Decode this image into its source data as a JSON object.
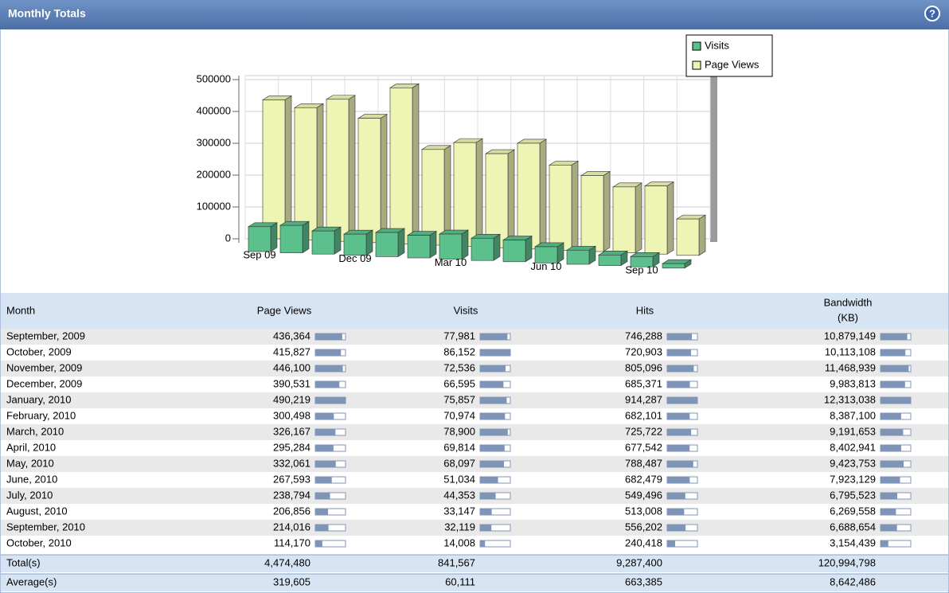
{
  "header": {
    "title": "Monthly Totals"
  },
  "chart_data": {
    "type": "bar3d",
    "categories": [
      "Sep 09",
      null,
      null,
      "Dec 09",
      null,
      null,
      "Mar 10",
      null,
      null,
      "Jun 10",
      null,
      null,
      "Sep 10",
      null
    ],
    "series": [
      {
        "name": "Visits",
        "color": "#5cc08c",
        "values": [
          77981,
          86152,
          72536,
          66595,
          75857,
          70974,
          78900,
          69814,
          68097,
          51034,
          44353,
          33147,
          32119,
          14008
        ]
      },
      {
        "name": "Page Views",
        "color": "#eef4b4",
        "values": [
          436364,
          415827,
          446100,
          390531,
          490219,
          300498,
          326167,
          295284,
          332061,
          267593,
          238794,
          206856,
          214016,
          114170
        ]
      }
    ],
    "ylim": [
      0,
      500000
    ],
    "yticks": [
      0,
      100000,
      200000,
      300000,
      400000,
      500000
    ],
    "grid": true,
    "legend": "top-right"
  },
  "table": {
    "columns": [
      [
        "Month"
      ],
      [
        "Page Views"
      ],
      [
        "Visits"
      ],
      [
        "Hits"
      ],
      [
        "Bandwidth",
        "(KB)"
      ]
    ],
    "rows": [
      {
        "month": "September, 2009",
        "cells": [
          {
            "value": 436364,
            "label": "436,364"
          },
          {
            "value": 77981,
            "label": "77,981"
          },
          {
            "value": 746288,
            "label": "746,288"
          },
          {
            "value": 10879149,
            "label": "10,879,149"
          }
        ]
      },
      {
        "month": "October, 2009",
        "cells": [
          {
            "value": 415827,
            "label": "415,827"
          },
          {
            "value": 86152,
            "label": "86,152"
          },
          {
            "value": 720903,
            "label": "720,903"
          },
          {
            "value": 10113108,
            "label": "10,113,108"
          }
        ]
      },
      {
        "month": "November, 2009",
        "cells": [
          {
            "value": 446100,
            "label": "446,100"
          },
          {
            "value": 72536,
            "label": "72,536"
          },
          {
            "value": 805096,
            "label": "805,096"
          },
          {
            "value": 11468939,
            "label": "11,468,939"
          }
        ]
      },
      {
        "month": "December, 2009",
        "cells": [
          {
            "value": 390531,
            "label": "390,531"
          },
          {
            "value": 66595,
            "label": "66,595"
          },
          {
            "value": 685371,
            "label": "685,371"
          },
          {
            "value": 9983813,
            "label": "9,983,813"
          }
        ]
      },
      {
        "month": "January, 2010",
        "cells": [
          {
            "value": 490219,
            "label": "490,219"
          },
          {
            "value": 75857,
            "label": "75,857"
          },
          {
            "value": 914287,
            "label": "914,287"
          },
          {
            "value": 12313038,
            "label": "12,313,038"
          }
        ]
      },
      {
        "month": "February, 2010",
        "cells": [
          {
            "value": 300498,
            "label": "300,498"
          },
          {
            "value": 70974,
            "label": "70,974"
          },
          {
            "value": 682101,
            "label": "682,101"
          },
          {
            "value": 8387100,
            "label": "8,387,100"
          }
        ]
      },
      {
        "month": "March, 2010",
        "cells": [
          {
            "value": 326167,
            "label": "326,167"
          },
          {
            "value": 78900,
            "label": "78,900"
          },
          {
            "value": 725722,
            "label": "725,722"
          },
          {
            "value": 9191653,
            "label": "9,191,653"
          }
        ]
      },
      {
        "month": "April, 2010",
        "cells": [
          {
            "value": 295284,
            "label": "295,284"
          },
          {
            "value": 69814,
            "label": "69,814"
          },
          {
            "value": 677542,
            "label": "677,542"
          },
          {
            "value": 8402941,
            "label": "8,402,941"
          }
        ]
      },
      {
        "month": "May, 2010",
        "cells": [
          {
            "value": 332061,
            "label": "332,061"
          },
          {
            "value": 68097,
            "label": "68,097"
          },
          {
            "value": 788487,
            "label": "788,487"
          },
          {
            "value": 9423753,
            "label": "9,423,753"
          }
        ]
      },
      {
        "month": "June, 2010",
        "cells": [
          {
            "value": 267593,
            "label": "267,593"
          },
          {
            "value": 51034,
            "label": "51,034"
          },
          {
            "value": 682479,
            "label": "682,479"
          },
          {
            "value": 7923129,
            "label": "7,923,129"
          }
        ]
      },
      {
        "month": "July, 2010",
        "cells": [
          {
            "value": 238794,
            "label": "238,794"
          },
          {
            "value": 44353,
            "label": "44,353"
          },
          {
            "value": 549496,
            "label": "549,496"
          },
          {
            "value": 6795523,
            "label": "6,795,523"
          }
        ]
      },
      {
        "month": "August, 2010",
        "cells": [
          {
            "value": 206856,
            "label": "206,856"
          },
          {
            "value": 33147,
            "label": "33,147"
          },
          {
            "value": 513008,
            "label": "513,008"
          },
          {
            "value": 6269558,
            "label": "6,269,558"
          }
        ]
      },
      {
        "month": "September, 2010",
        "cells": [
          {
            "value": 214016,
            "label": "214,016"
          },
          {
            "value": 32119,
            "label": "32,119"
          },
          {
            "value": 556202,
            "label": "556,202"
          },
          {
            "value": 6688654,
            "label": "6,688,654"
          }
        ]
      },
      {
        "month": "October, 2010",
        "cells": [
          {
            "value": 114170,
            "label": "114,170"
          },
          {
            "value": 14008,
            "label": "14,008"
          },
          {
            "value": 240418,
            "label": "240,418"
          },
          {
            "value": 3154439,
            "label": "3,154,439"
          }
        ]
      }
    ],
    "totals": {
      "label": "Total(s)",
      "cells": [
        "4,474,480",
        "841,567",
        "9,287,400",
        "120,994,798"
      ]
    },
    "averages": {
      "label": "Average(s)",
      "cells": [
        "319,605",
        "60,111",
        "663,385",
        "8,642,486"
      ]
    }
  }
}
